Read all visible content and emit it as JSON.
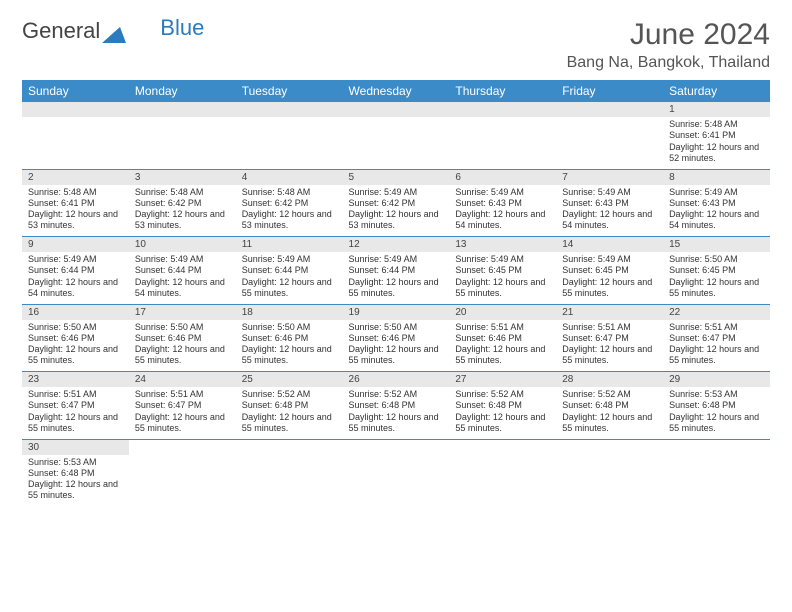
{
  "brand": {
    "part1": "General",
    "part2": "Blue"
  },
  "title": "June 2024",
  "location": "Bang Na, Bangkok, Thailand",
  "colors": {
    "header_bg": "#3b8bc9",
    "header_text": "#ffffff",
    "daynum_bg": "#e8e8e8",
    "row_divider": "#3b8bc9",
    "text": "#333333",
    "title_text": "#555555"
  },
  "day_headers": [
    "Sunday",
    "Monday",
    "Tuesday",
    "Wednesday",
    "Thursday",
    "Friday",
    "Saturday"
  ],
  "weeks": [
    [
      null,
      null,
      null,
      null,
      null,
      null,
      {
        "n": "1",
        "sr": "5:48 AM",
        "ss": "6:41 PM",
        "dl": "12 hours and 52 minutes."
      }
    ],
    [
      {
        "n": "2",
        "sr": "5:48 AM",
        "ss": "6:41 PM",
        "dl": "12 hours and 53 minutes."
      },
      {
        "n": "3",
        "sr": "5:48 AM",
        "ss": "6:42 PM",
        "dl": "12 hours and 53 minutes."
      },
      {
        "n": "4",
        "sr": "5:48 AM",
        "ss": "6:42 PM",
        "dl": "12 hours and 53 minutes."
      },
      {
        "n": "5",
        "sr": "5:49 AM",
        "ss": "6:42 PM",
        "dl": "12 hours and 53 minutes."
      },
      {
        "n": "6",
        "sr": "5:49 AM",
        "ss": "6:43 PM",
        "dl": "12 hours and 54 minutes."
      },
      {
        "n": "7",
        "sr": "5:49 AM",
        "ss": "6:43 PM",
        "dl": "12 hours and 54 minutes."
      },
      {
        "n": "8",
        "sr": "5:49 AM",
        "ss": "6:43 PM",
        "dl": "12 hours and 54 minutes."
      }
    ],
    [
      {
        "n": "9",
        "sr": "5:49 AM",
        "ss": "6:44 PM",
        "dl": "12 hours and 54 minutes."
      },
      {
        "n": "10",
        "sr": "5:49 AM",
        "ss": "6:44 PM",
        "dl": "12 hours and 54 minutes."
      },
      {
        "n": "11",
        "sr": "5:49 AM",
        "ss": "6:44 PM",
        "dl": "12 hours and 55 minutes."
      },
      {
        "n": "12",
        "sr": "5:49 AM",
        "ss": "6:44 PM",
        "dl": "12 hours and 55 minutes."
      },
      {
        "n": "13",
        "sr": "5:49 AM",
        "ss": "6:45 PM",
        "dl": "12 hours and 55 minutes."
      },
      {
        "n": "14",
        "sr": "5:49 AM",
        "ss": "6:45 PM",
        "dl": "12 hours and 55 minutes."
      },
      {
        "n": "15",
        "sr": "5:50 AM",
        "ss": "6:45 PM",
        "dl": "12 hours and 55 minutes."
      }
    ],
    [
      {
        "n": "16",
        "sr": "5:50 AM",
        "ss": "6:46 PM",
        "dl": "12 hours and 55 minutes."
      },
      {
        "n": "17",
        "sr": "5:50 AM",
        "ss": "6:46 PM",
        "dl": "12 hours and 55 minutes."
      },
      {
        "n": "18",
        "sr": "5:50 AM",
        "ss": "6:46 PM",
        "dl": "12 hours and 55 minutes."
      },
      {
        "n": "19",
        "sr": "5:50 AM",
        "ss": "6:46 PM",
        "dl": "12 hours and 55 minutes."
      },
      {
        "n": "20",
        "sr": "5:51 AM",
        "ss": "6:46 PM",
        "dl": "12 hours and 55 minutes."
      },
      {
        "n": "21",
        "sr": "5:51 AM",
        "ss": "6:47 PM",
        "dl": "12 hours and 55 minutes."
      },
      {
        "n": "22",
        "sr": "5:51 AM",
        "ss": "6:47 PM",
        "dl": "12 hours and 55 minutes."
      }
    ],
    [
      {
        "n": "23",
        "sr": "5:51 AM",
        "ss": "6:47 PM",
        "dl": "12 hours and 55 minutes."
      },
      {
        "n": "24",
        "sr": "5:51 AM",
        "ss": "6:47 PM",
        "dl": "12 hours and 55 minutes."
      },
      {
        "n": "25",
        "sr": "5:52 AM",
        "ss": "6:48 PM",
        "dl": "12 hours and 55 minutes."
      },
      {
        "n": "26",
        "sr": "5:52 AM",
        "ss": "6:48 PM",
        "dl": "12 hours and 55 minutes."
      },
      {
        "n": "27",
        "sr": "5:52 AM",
        "ss": "6:48 PM",
        "dl": "12 hours and 55 minutes."
      },
      {
        "n": "28",
        "sr": "5:52 AM",
        "ss": "6:48 PM",
        "dl": "12 hours and 55 minutes."
      },
      {
        "n": "29",
        "sr": "5:53 AM",
        "ss": "6:48 PM",
        "dl": "12 hours and 55 minutes."
      }
    ],
    [
      {
        "n": "30",
        "sr": "5:53 AM",
        "ss": "6:48 PM",
        "dl": "12 hours and 55 minutes."
      },
      null,
      null,
      null,
      null,
      null,
      null
    ]
  ],
  "labels": {
    "sunrise": "Sunrise:",
    "sunset": "Sunset:",
    "daylight": "Daylight:"
  }
}
